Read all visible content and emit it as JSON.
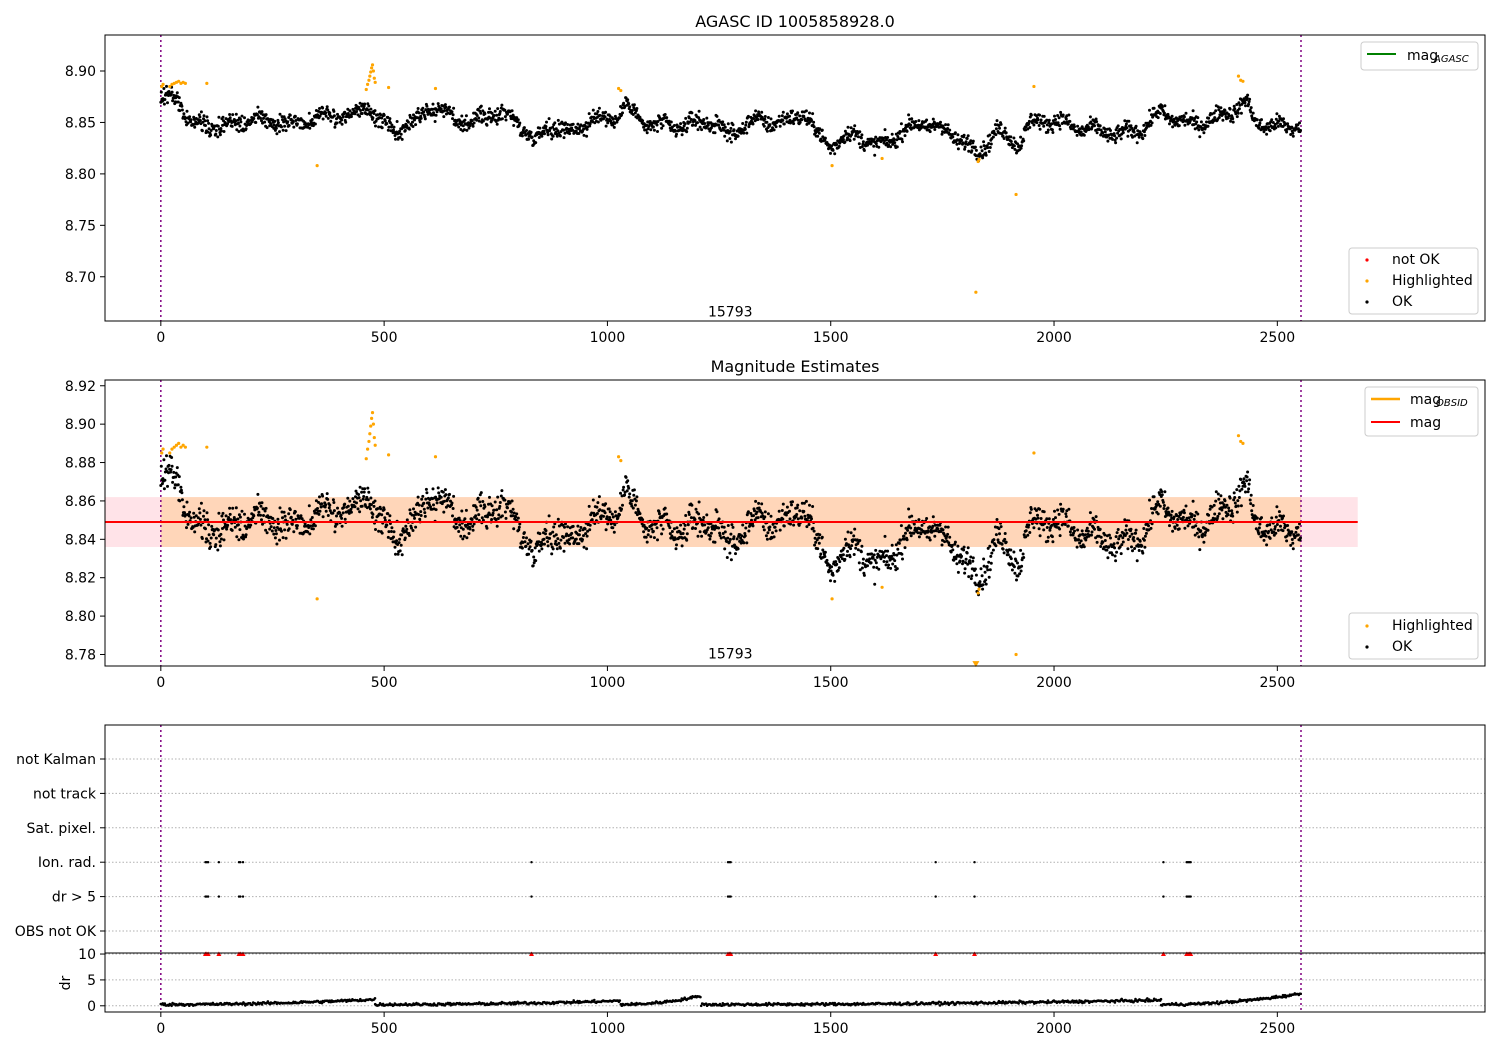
{
  "figure": {
    "background": "#ffffff"
  },
  "chart_data": [
    {
      "type": "scatter",
      "title": "AGASC ID 1005858928.0",
      "xlim": [
        -125,
        2965
      ],
      "ylim": [
        8.657,
        8.935
      ],
      "xticks": [
        0,
        500,
        1000,
        1500,
        2000,
        2500
      ],
      "xtick_labels": [
        "0",
        "500",
        "1000",
        "1500",
        "2000",
        "2500"
      ],
      "yticks": [
        8.7,
        8.75,
        8.8,
        8.85,
        8.9
      ],
      "ytick_labels": [
        "8.70",
        "8.75",
        "8.80",
        "8.85",
        "8.90"
      ],
      "vlines": [
        0,
        2553
      ],
      "obsid_label": {
        "x": 1275,
        "y": 8.666,
        "text": "15793"
      },
      "legend_lines": [
        {
          "label": "mag",
          "sub": "AGASC",
          "color": "#008000"
        }
      ],
      "legend_points": [
        {
          "label": "not OK",
          "color": "#ff0000"
        },
        {
          "label": "Highlighted",
          "color": "#ffa500"
        },
        {
          "label": "OK",
          "color": "#000000"
        }
      ],
      "series": [
        {
          "name": "OK",
          "color": "#000000",
          "base_offset": 0.0
        },
        {
          "name": "Highlighted",
          "color": "#ffa500",
          "points": [
            [
              2,
              8.885
            ],
            [
              5,
              8.887
            ],
            [
              20,
              8.885
            ],
            [
              25,
              8.887
            ],
            [
              30,
              8.888
            ],
            [
              35,
              8.889
            ],
            [
              40,
              8.89
            ],
            [
              45,
              8.888
            ],
            [
              50,
              8.889
            ],
            [
              55,
              8.888
            ],
            [
              103,
              8.888
            ],
            [
              350,
              8.808
            ],
            [
              460,
              8.882
            ],
            [
              463,
              8.887
            ],
            [
              466,
              8.891
            ],
            [
              468,
              8.895
            ],
            [
              470,
              8.899
            ],
            [
              472,
              8.903
            ],
            [
              474,
              8.906
            ],
            [
              476,
              8.9
            ],
            [
              478,
              8.893
            ],
            [
              480,
              8.889
            ],
            [
              510,
              8.884
            ],
            [
              615,
              8.883
            ],
            [
              1025,
              8.883
            ],
            [
              1030,
              8.881
            ],
            [
              1503,
              8.808
            ],
            [
              1615,
              8.815
            ],
            [
              1830,
              8.812
            ],
            [
              1832,
              8.814
            ],
            [
              1825,
              8.685
            ],
            [
              1915,
              8.78
            ],
            [
              1955,
              8.885
            ],
            [
              2413,
              8.895
            ],
            [
              2418,
              8.891
            ],
            [
              2423,
              8.89
            ]
          ]
        }
      ]
    },
    {
      "type": "scatter",
      "title": "Magnitude Estimates",
      "xlim": [
        -125,
        2965
      ],
      "ylim": [
        8.774,
        8.923
      ],
      "xticks": [
        0,
        500,
        1000,
        1500,
        2000,
        2500
      ],
      "xtick_labels": [
        "0",
        "500",
        "1000",
        "1500",
        "2000",
        "2500"
      ],
      "yticks": [
        8.78,
        8.8,
        8.82,
        8.84,
        8.86,
        8.88,
        8.9,
        8.92
      ],
      "ytick_labels": [
        "8.78",
        "8.80",
        "8.82",
        "8.84",
        "8.86",
        "8.88",
        "8.90",
        "8.92"
      ],
      "vlines": [
        0,
        2553
      ],
      "obsid_label": {
        "x": 1275,
        "y": 8.7805,
        "text": "15793"
      },
      "mag_line": {
        "y": 8.849,
        "x": [
          -125,
          2680
        ],
        "color": "#ff0000"
      },
      "mag_band": {
        "y": [
          8.836,
          8.862
        ],
        "x": [
          -125,
          2680
        ],
        "color": "#ffc0cb"
      },
      "obsid_band": {
        "y": [
          8.836,
          8.862
        ],
        "x": [
          0,
          2553
        ],
        "color": "#ffa500"
      },
      "obsid_line": {
        "y": 8.849,
        "x": [
          0,
          2553
        ],
        "color": "#ffa500"
      },
      "legend_lines": [
        {
          "label": "mag",
          "sub": "OBSID",
          "color": "#ffa500"
        },
        {
          "label": "mag",
          "sub": "",
          "color": "#ff0000"
        }
      ],
      "legend_points": [
        {
          "label": "Highlighted",
          "color": "#ffa500"
        },
        {
          "label": "OK",
          "color": "#000000"
        }
      ],
      "series": [
        {
          "name": "OK",
          "color": "#000000",
          "base_offset": -0.0015
        },
        {
          "name": "Highlighted",
          "color": "#ffa500",
          "points": [
            [
              2,
              8.885
            ],
            [
              5,
              8.887
            ],
            [
              20,
              8.885
            ],
            [
              25,
              8.887
            ],
            [
              30,
              8.888
            ],
            [
              35,
              8.889
            ],
            [
              40,
              8.89
            ],
            [
              45,
              8.888
            ],
            [
              50,
              8.889
            ],
            [
              55,
              8.888
            ],
            [
              103,
              8.888
            ],
            [
              350,
              8.809
            ],
            [
              460,
              8.882
            ],
            [
              463,
              8.887
            ],
            [
              466,
              8.891
            ],
            [
              468,
              8.895
            ],
            [
              470,
              8.899
            ],
            [
              472,
              8.903
            ],
            [
              474,
              8.906
            ],
            [
              476,
              8.9
            ],
            [
              478,
              8.893
            ],
            [
              480,
              8.889
            ],
            [
              510,
              8.884
            ],
            [
              615,
              8.883
            ],
            [
              1025,
              8.883
            ],
            [
              1030,
              8.881
            ],
            [
              1503,
              8.809
            ],
            [
              1615,
              8.815
            ],
            [
              1830,
              8.812
            ],
            [
              1832,
              8.814
            ],
            [
              1915,
              8.78
            ],
            [
              1955,
              8.885
            ],
            [
              2413,
              8.894
            ],
            [
              2418,
              8.891
            ],
            [
              2423,
              8.89
            ]
          ],
          "clipped_points": [
            [
              1825,
              8.775
            ]
          ]
        }
      ]
    },
    {
      "type": "scatter",
      "title": "",
      "xlim": [
        -125,
        2965
      ],
      "xticks": [
        0,
        500,
        1000,
        1500,
        2000,
        2500
      ],
      "xtick_labels": [
        "0",
        "500",
        "1000",
        "1500",
        "2000",
        "2500"
      ],
      "vlines": [
        0,
        2553
      ],
      "flag_categories": [
        "not Kalman",
        "not track",
        "Sat. pixel.",
        "Ion. rad.",
        "dr > 5",
        "OBS not OK"
      ],
      "flags": [
        {
          "category": "Ion. rad.",
          "x": [
            100,
            103,
            106,
            130,
            175,
            178,
            184,
            830,
            1270,
            1273,
            1276,
            1735,
            1822,
            2245,
            2297,
            2300,
            2303,
            2306
          ]
        },
        {
          "category": "dr > 5",
          "x": [
            100,
            103,
            106,
            130,
            175,
            178,
            184,
            830,
            1270,
            1273,
            1276,
            1735,
            1822,
            2245,
            2297,
            2300,
            2303,
            2306
          ]
        }
      ],
      "dr_panel": {
        "ylabel": "dr",
        "ylim": [
          -1.2,
          10.2
        ],
        "yticks": [
          0,
          5,
          10
        ],
        "ytick_labels": [
          "0",
          "5",
          "10"
        ],
        "color": "#000000",
        "segments": [
          [
            0,
            0.7
          ],
          [
            480,
            0.5
          ],
          [
            1030,
            1.2
          ],
          [
            1210,
            0.6
          ],
          [
            2240,
            1.5
          ],
          [
            2553,
            0.4
          ]
        ],
        "clip_y": 10,
        "clip_markers": {
          "color": "#ff0000",
          "x": [
            100,
            103,
            106,
            130,
            175,
            178,
            184,
            830,
            1270,
            1273,
            1276,
            1735,
            1822,
            2245,
            2297,
            2300,
            2303,
            2306
          ]
        }
      }
    }
  ]
}
